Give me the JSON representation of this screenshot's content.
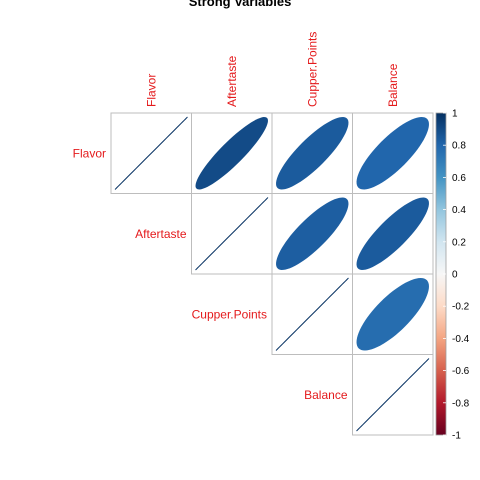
{
  "chart_data": {
    "type": "heatmap",
    "subtype": "correlation-ellipse",
    "title": "Strong Variables",
    "variables": [
      "Flavor",
      "Aftertaste",
      "Cupper.Points",
      "Balance"
    ],
    "matrix_part": "upper",
    "correlations": [
      [
        1.0,
        0.9,
        0.84,
        0.8
      ],
      [
        0.9,
        1.0,
        0.83,
        0.84
      ],
      [
        0.84,
        0.83,
        1.0,
        0.77
      ],
      [
        0.8,
        0.84,
        0.77,
        1.0
      ]
    ],
    "label_color": "#e41a1c",
    "colorbar": {
      "range": [
        -1,
        1
      ],
      "ticks": [
        "1",
        "0.8",
        "0.6",
        "0.4",
        "0.2",
        "0",
        "-0.2",
        "-0.4",
        "-0.6",
        "-0.8",
        "-1"
      ],
      "colors": [
        "#053061",
        "#2166ac",
        "#4393c3",
        "#92c5de",
        "#d1e5f0",
        "#f7f7f7",
        "#fddbc7",
        "#f4a582",
        "#d6604d",
        "#b2182b",
        "#67001f"
      ]
    },
    "grid": true,
    "legend_position": "right"
  }
}
